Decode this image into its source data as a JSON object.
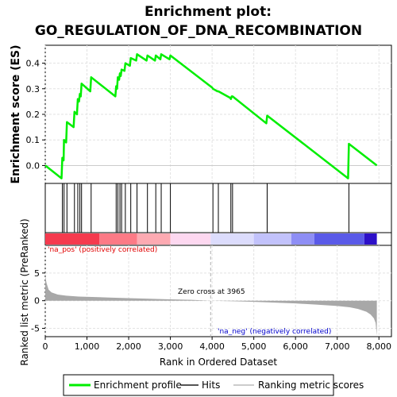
{
  "chart_data": {
    "type": "line",
    "title_line1": "Enrichment plot:",
    "title_line2": "GO_REGULATION_OF_DNA_RECOMBINATION",
    "xlabel": "Rank in Ordered Dataset",
    "ylabel_top": "Enrichment score (ES)",
    "ylabel_bottom": "Ranked list metric (PreRanked)",
    "xlim": [
      0,
      8300
    ],
    "top_ylim": [
      -0.07,
      0.47
    ],
    "bottom_ylim": [
      -6.5,
      10
    ],
    "x_ticks": [
      0,
      1000,
      2000,
      3000,
      4000,
      5000,
      6000,
      7000,
      8000
    ],
    "x_tick_labels": [
      "0",
      "1,000",
      "2,000",
      "3,000",
      "4,000",
      "5,000",
      "6,000",
      "7,000",
      "8,000"
    ],
    "top_y_ticks": [
      0.0,
      0.1,
      0.2,
      0.3,
      0.4
    ],
    "top_y_tick_labels": [
      "0.0",
      "0.1",
      "0.2",
      "0.3",
      "0.4"
    ],
    "bottom_y_ticks": [
      -5,
      0,
      5
    ],
    "bottom_y_tick_labels": [
      "-5",
      "0",
      "5"
    ],
    "grid": true,
    "hits": [
      410,
      450,
      520,
      700,
      780,
      830,
      870,
      1100,
      1700,
      1740,
      1790,
      1830,
      1920,
      2050,
      2200,
      2450,
      2650,
      2780,
      3000,
      4020,
      4150,
      4450,
      4490,
      5320,
      7280
    ],
    "es_curve": {
      "x": [
        0,
        390,
        410,
        440,
        450,
        500,
        520,
        680,
        700,
        760,
        780,
        810,
        830,
        850,
        870,
        1080,
        1100,
        1680,
        1700,
        1720,
        1740,
        1770,
        1790,
        1810,
        1830,
        1900,
        1920,
        2030,
        2050,
        2180,
        2200,
        2430,
        2450,
        2630,
        2650,
        2760,
        2780,
        2980,
        3000,
        4000,
        4020,
        4130,
        4150,
        4430,
        4450,
        4470,
        4490,
        5300,
        5320,
        7260,
        7280,
        7950
      ],
      "y": [
        0.0,
        -0.05,
        0.03,
        0.02,
        0.1,
        0.09,
        0.17,
        0.15,
        0.21,
        0.2,
        0.26,
        0.25,
        0.28,
        0.27,
        0.32,
        0.29,
        0.345,
        0.27,
        0.31,
        0.3,
        0.345,
        0.335,
        0.36,
        0.35,
        0.375,
        0.37,
        0.4,
        0.39,
        0.42,
        0.41,
        0.435,
        0.41,
        0.43,
        0.41,
        0.43,
        0.415,
        0.435,
        0.415,
        0.43,
        0.305,
        0.3,
        0.29,
        0.29,
        0.265,
        0.26,
        0.27,
        0.27,
        0.165,
        0.195,
        -0.05,
        0.085,
        0.0
      ]
    },
    "metric_curve": {
      "x": [
        0,
        30,
        80,
        150,
        300,
        500,
        800,
        1200,
        1600,
        2000,
        2500,
        3000,
        3500,
        3965,
        4500,
        5000,
        5500,
        6000,
        6500,
        7000,
        7300,
        7500,
        7700,
        7800,
        7880,
        7920,
        7950
      ],
      "y": [
        4.5,
        3.2,
        2.0,
        1.5,
        1.1,
        0.9,
        0.75,
        0.65,
        0.55,
        0.45,
        0.35,
        0.25,
        0.15,
        0.0,
        -0.1,
        -0.2,
        -0.35,
        -0.5,
        -0.7,
        -0.95,
        -1.2,
        -1.5,
        -2.0,
        -2.5,
        -3.2,
        -4.0,
        -6.3
      ]
    },
    "color_bar_segments": [
      {
        "x0": 0,
        "x1": 1300,
        "color": "#f53a4e"
      },
      {
        "x0": 1300,
        "x1": 2200,
        "color": "#fc7a86"
      },
      {
        "x0": 2200,
        "x1": 3000,
        "color": "#fdaab2"
      },
      {
        "x0": 3000,
        "x1": 3965,
        "color": "#fdd8f0"
      },
      {
        "x0": 3965,
        "x1": 5000,
        "color": "#dcdcfc"
      },
      {
        "x0": 5000,
        "x1": 5900,
        "color": "#c2c2fb"
      },
      {
        "x0": 5900,
        "x1": 6450,
        "color": "#8e8ef5"
      },
      {
        "x0": 6450,
        "x1": 7650,
        "color": "#5a5ae8"
      },
      {
        "x0": 7650,
        "x1": 7950,
        "color": "#2d10c8"
      }
    ],
    "zero_cross": 3965,
    "annotations": {
      "pos": "'na_pos' (positively correlated)",
      "neg": "'na_neg' (negatively correlated)",
      "zero": "Zero cross at 3965"
    },
    "legend": [
      "Enrichment profile",
      "Hits",
      "Ranking metric scores"
    ],
    "colors": {
      "es_line": "#00ee00",
      "hit_line": "#000000",
      "metric_fill": "#a8a8a8",
      "grid": "#e2e2e2",
      "pos_text": "#e00000",
      "neg_text": "#0000cc",
      "zero_line": "#b0b0b0"
    }
  }
}
